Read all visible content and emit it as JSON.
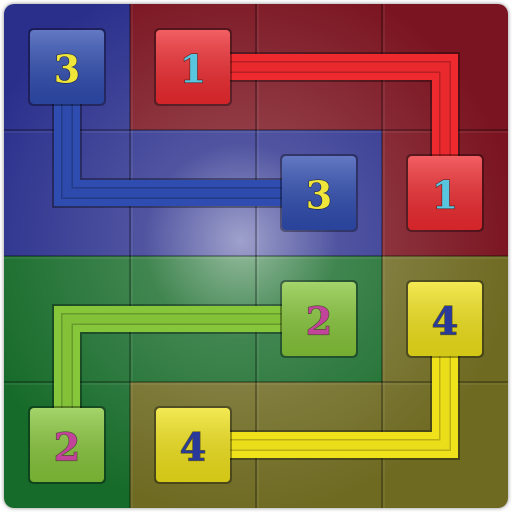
{
  "game": {
    "type": "number-link",
    "grid": {
      "rows": 4,
      "cols": 4
    },
    "regions": [
      {
        "color": "#2a2f8c",
        "cells": [
          [
            0,
            0
          ],
          [
            1,
            0
          ],
          [
            1,
            1
          ],
          [
            1,
            2
          ]
        ]
      },
      {
        "color": "#7a1420",
        "cells": [
          [
            0,
            1
          ],
          [
            0,
            2
          ],
          [
            0,
            3
          ],
          [
            1,
            3
          ]
        ]
      },
      {
        "color": "#176b2a",
        "cells": [
          [
            2,
            0
          ],
          [
            2,
            1
          ],
          [
            2,
            2
          ],
          [
            3,
            0
          ]
        ]
      },
      {
        "color": "#6e6a22",
        "cells": [
          [
            2,
            3
          ],
          [
            3,
            1
          ],
          [
            3,
            2
          ],
          [
            3,
            3
          ]
        ]
      }
    ],
    "paths": [
      {
        "number": "1",
        "color": "#ee2a2f",
        "cells": [
          [
            0,
            1
          ],
          [
            0,
            2
          ],
          [
            0,
            3
          ],
          [
            1,
            3
          ]
        ]
      },
      {
        "number": "2",
        "color": "#86c63a",
        "cells": [
          [
            2,
            2
          ],
          [
            2,
            1
          ],
          [
            2,
            0
          ],
          [
            3,
            0
          ]
        ]
      },
      {
        "number": "3",
        "color": "#2f4cb0",
        "cells": [
          [
            0,
            0
          ],
          [
            1,
            0
          ],
          [
            1,
            1
          ],
          [
            1,
            2
          ]
        ]
      },
      {
        "number": "4",
        "color": "#f0e21a",
        "cells": [
          [
            2,
            3
          ],
          [
            3,
            3
          ],
          [
            3,
            2
          ],
          [
            3,
            1
          ]
        ]
      }
    ],
    "endpoints": [
      {
        "number": "1",
        "cell": [
          0,
          1
        ],
        "tile": "#ee2a2f",
        "text": "#58c6de"
      },
      {
        "number": "1",
        "cell": [
          1,
          3
        ],
        "tile": "#ee2a2f",
        "text": "#58c6de"
      },
      {
        "number": "2",
        "cell": [
          2,
          2
        ],
        "tile": "#86c63a",
        "text": "#c2449a"
      },
      {
        "number": "2",
        "cell": [
          3,
          0
        ],
        "tile": "#86c63a",
        "text": "#c2449a"
      },
      {
        "number": "3",
        "cell": [
          0,
          0
        ],
        "tile": "#2f4cb0",
        "text": "#f0e63a"
      },
      {
        "number": "3",
        "cell": [
          1,
          2
        ],
        "tile": "#2f4cb0",
        "text": "#f0e63a"
      },
      {
        "number": "4",
        "cell": [
          2,
          3
        ],
        "tile": "#f0e21a",
        "text": "#2a3a9a"
      },
      {
        "number": "4",
        "cell": [
          3,
          1
        ],
        "tile": "#f0e21a",
        "text": "#2a3a9a"
      }
    ]
  }
}
